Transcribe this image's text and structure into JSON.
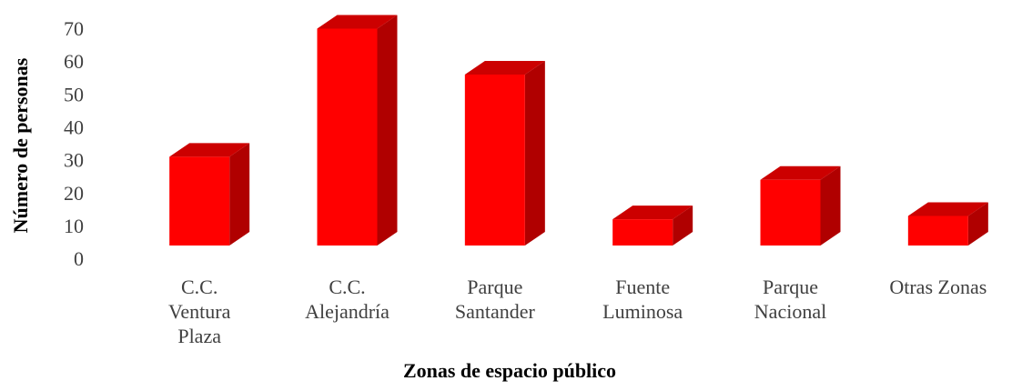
{
  "chart_data": {
    "type": "bar3d",
    "x_label": "Zonas de espacio público",
    "y_label": "Número de personas",
    "categories": [
      "C.C.\nVentura\nPlaza",
      "C.C.\nAlejandría",
      "Parque\nSantander",
      "Fuente\nLuminosa",
      "Parque\nNacional",
      "Otras Zonas"
    ],
    "values": [
      27,
      66,
      52,
      8,
      20,
      9
    ],
    "color": "#ff0000",
    "ylim": [
      0,
      70
    ],
    "yticks": [
      0,
      10,
      20,
      30,
      40,
      50,
      60,
      70
    ],
    "grid": false
  }
}
